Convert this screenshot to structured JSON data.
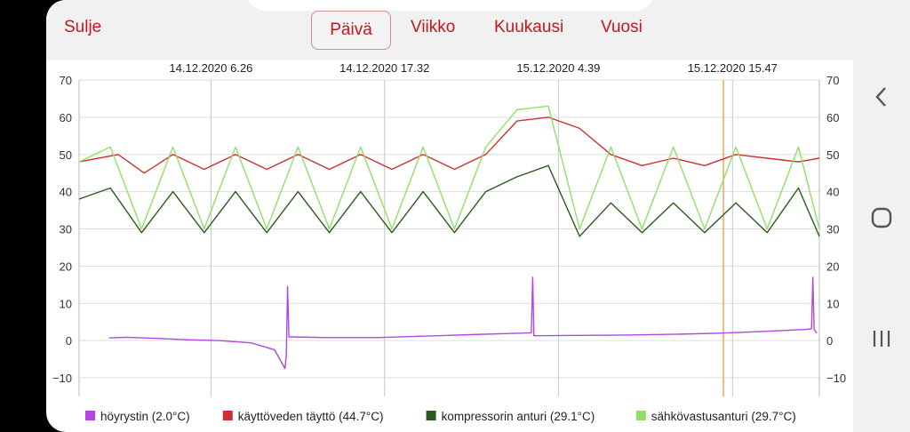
{
  "header": {
    "close_label": "Sulje",
    "tabs": [
      {
        "label": "Päivä",
        "active": true
      },
      {
        "label": "Viikko",
        "active": false
      },
      {
        "label": "Kuukausi",
        "active": false
      },
      {
        "label": "Vuosi",
        "active": false
      }
    ]
  },
  "nav": {
    "back_icon": "chevron-left-icon",
    "home_icon": "circle-home-icon",
    "recents_icon": "recent-apps-icon"
  },
  "colors": {
    "accent": "#c4161c",
    "series": [
      "#b146e0",
      "#cc3030",
      "#2b5a1e",
      "#8fe06a"
    ],
    "marker": "#f5a25a"
  },
  "chart_data": {
    "type": "line",
    "ylim": [
      -15,
      70
    ],
    "yticks": [
      -10,
      0,
      10,
      20,
      30,
      40,
      50,
      60,
      70
    ],
    "ytick_labels": [
      "−10",
      "0",
      "10",
      "20",
      "30",
      "40",
      "50",
      "60",
      "70"
    ],
    "xlim": [
      "2020-12-13 22:00",
      "2020-12-15 21:20"
    ],
    "x_labels": [
      {
        "x": "2020-12-14 06:26",
        "label": "14.12.2020 6.26"
      },
      {
        "x": "2020-12-14 17:32",
        "label": "14.12.2020 17.32"
      },
      {
        "x": "2020-12-15 04:39",
        "label": "15.12.2020 4.39"
      },
      {
        "x": "2020-12-15 15:47",
        "label": "15.12.2020 15.47"
      }
    ],
    "marker_x": "2020-12-15 15:12",
    "grid": true,
    "legend_position": "bottom",
    "series": [
      {
        "name": "höyrystin (2.0°C)",
        "x": [
          "2020-12-13 23:55",
          "2020-12-14 01:00",
          "2020-12-14 03:00",
          "2020-12-14 05:00",
          "2020-12-14 07:00",
          "2020-12-14 09:00",
          "2020-12-14 10:30",
          "2020-12-14 11:10",
          "2020-12-14 11:15",
          "2020-12-14 11:20",
          "2020-12-14 11:25",
          "2020-12-14 11:30",
          "2020-12-14 14:00",
          "2020-12-14 17:00",
          "2020-12-14 20:00",
          "2020-12-14 23:00",
          "2020-12-15 01:30",
          "2020-12-15 02:55",
          "2020-12-15 03:00",
          "2020-12-15 03:05",
          "2020-12-15 03:10",
          "2020-12-15 06:00",
          "2020-12-15 09:00",
          "2020-12-15 12:00",
          "2020-12-15 15:00",
          "2020-12-15 18:00",
          "2020-12-15 20:30",
          "2020-12-15 20:50",
          "2020-12-15 20:55",
          "2020-12-15 21:00",
          "2020-12-15 21:10"
        ],
        "values": [
          0.7,
          0.9,
          0.6,
          0.2,
          0.0,
          -0.6,
          -2.5,
          -7.5,
          -4.0,
          14.5,
          1.0,
          1.0,
          0.8,
          0.8,
          1.2,
          1.6,
          1.9,
          2.1,
          17.0,
          1.3,
          1.3,
          1.4,
          1.5,
          1.7,
          2.0,
          2.5,
          3.0,
          3.2,
          17.0,
          3.0,
          2.0
        ]
      },
      {
        "name": "käyttöveden täyttö (44.7°C)",
        "x": [
          "2020-12-13 22:00",
          "2020-12-14 00:30",
          "2020-12-14 02:10",
          "2020-12-14 04:00",
          "2020-12-14 06:00",
          "2020-12-14 08:00",
          "2020-12-14 10:00",
          "2020-12-14 12:00",
          "2020-12-14 14:00",
          "2020-12-14 16:00",
          "2020-12-14 18:00",
          "2020-12-14 20:00",
          "2020-12-14 22:00",
          "2020-12-15 00:00",
          "2020-12-15 02:00",
          "2020-12-15 04:00",
          "2020-12-15 06:00",
          "2020-12-15 08:00",
          "2020-12-15 10:00",
          "2020-12-15 12:00",
          "2020-12-15 14:00",
          "2020-12-15 16:00",
          "2020-12-15 18:00",
          "2020-12-15 20:00",
          "2020-12-15 21:20"
        ],
        "values": [
          48,
          50,
          45,
          50,
          46,
          50,
          46,
          50,
          46,
          50,
          46,
          50,
          46,
          50,
          59,
          60,
          57,
          50,
          47,
          49,
          47,
          50,
          49,
          48,
          49
        ]
      },
      {
        "name": "kompressorin anturi (29.1°C)",
        "x": [
          "2020-12-13 22:00",
          "2020-12-14 00:00",
          "2020-12-14 02:00",
          "2020-12-14 04:00",
          "2020-12-14 06:00",
          "2020-12-14 08:00",
          "2020-12-14 10:00",
          "2020-12-14 12:00",
          "2020-12-14 14:00",
          "2020-12-14 16:00",
          "2020-12-14 18:00",
          "2020-12-14 20:00",
          "2020-12-14 22:00",
          "2020-12-15 00:00",
          "2020-12-15 02:00",
          "2020-12-15 04:00",
          "2020-12-15 06:00",
          "2020-12-15 08:00",
          "2020-12-15 10:00",
          "2020-12-15 12:00",
          "2020-12-15 14:00",
          "2020-12-15 16:00",
          "2020-12-15 18:00",
          "2020-12-15 20:00",
          "2020-12-15 21:20"
        ],
        "values": [
          38,
          41,
          29,
          40,
          29,
          40,
          29,
          40,
          29,
          40,
          29,
          40,
          29,
          40,
          44,
          47,
          28,
          37,
          29,
          37,
          29,
          37,
          29,
          41,
          28
        ]
      },
      {
        "name": "sähkövastusanturi (29.7°C)",
        "x": [
          "2020-12-13 22:00",
          "2020-12-14 00:00",
          "2020-12-14 02:00",
          "2020-12-14 04:00",
          "2020-12-14 06:00",
          "2020-12-14 08:00",
          "2020-12-14 10:00",
          "2020-12-14 12:00",
          "2020-12-14 14:00",
          "2020-12-14 16:00",
          "2020-12-14 18:00",
          "2020-12-14 20:00",
          "2020-12-14 22:00",
          "2020-12-15 00:00",
          "2020-12-15 02:00",
          "2020-12-15 04:00",
          "2020-12-15 06:00",
          "2020-12-15 08:00",
          "2020-12-15 10:00",
          "2020-12-15 12:00",
          "2020-12-15 14:00",
          "2020-12-15 16:00",
          "2020-12-15 18:00",
          "2020-12-15 20:00",
          "2020-12-15 21:20"
        ],
        "values": [
          48,
          52,
          30,
          52,
          30,
          52,
          30,
          52,
          30,
          52,
          30,
          52,
          30,
          52,
          62,
          63,
          30,
          52,
          30,
          52,
          30,
          52,
          30,
          52,
          30
        ]
      }
    ]
  }
}
